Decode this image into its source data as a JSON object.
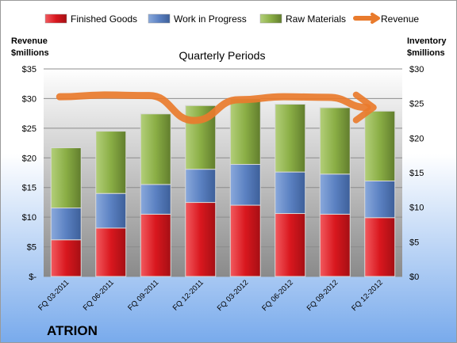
{
  "company": "ATRION",
  "chart_data": {
    "type": "bar",
    "stacked": true,
    "subtitle": "Quarterly Periods",
    "categories": [
      "FQ 03-2011",
      "FQ 06-2011",
      "FQ 09-2011",
      "FQ 12-2011",
      "FQ 03-2012",
      "FQ 06-2012",
      "FQ 09-2012",
      "FQ 12-2012"
    ],
    "left_axis": {
      "label_line1": "Revenue",
      "label_line2": "$millions",
      "range": [
        0,
        35
      ],
      "ticks": [
        "$-",
        "$5",
        "$10",
        "$15",
        "$20",
        "$25",
        "$30",
        "$35"
      ]
    },
    "right_axis": {
      "label_line1": "Inventory",
      "label_line2": "$millions",
      "range": [
        0,
        30
      ],
      "ticks": [
        "$0",
        "$5",
        "$10",
        "$15",
        "$20",
        "$25",
        "$30"
      ]
    },
    "series": [
      {
        "name": "Finished Goods",
        "axis": "right",
        "color": "#e0242b",
        "values": [
          5.3,
          7.0,
          9.0,
          10.7,
          10.3,
          9.1,
          9.0,
          8.5
        ]
      },
      {
        "name": "Work in Progress",
        "axis": "right",
        "color": "#5b81c2",
        "values": [
          4.6,
          5.0,
          4.3,
          4.8,
          5.9,
          6.0,
          5.8,
          5.3
        ]
      },
      {
        "name": "Raw Materials",
        "axis": "right",
        "color": "#8aae45",
        "values": [
          8.7,
          9.0,
          10.2,
          9.2,
          9.5,
          9.8,
          9.6,
          10.1
        ]
      },
      {
        "name": "Revenue",
        "axis": "left",
        "color": "#e97b2d",
        "type": "line",
        "values": [
          30.3,
          30.6,
          30.5,
          26.3,
          29.8,
          30.3,
          30.2,
          28.5
        ]
      }
    ],
    "grid": true,
    "legend": "top"
  }
}
